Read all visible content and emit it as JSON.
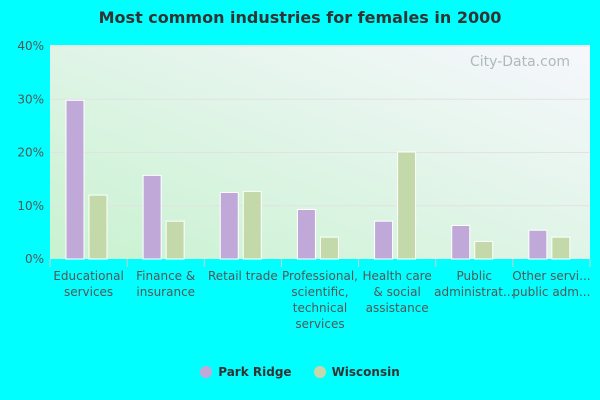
{
  "chart_data": {
    "type": "bar",
    "title": "Most common industries for females in 2000",
    "categories": [
      [
        "Educational",
        "services"
      ],
      [
        "Finance &",
        "insurance"
      ],
      [
        "Retail trade"
      ],
      [
        "Professional,",
        "scientific,",
        "technical",
        "services"
      ],
      [
        "Health care",
        "& social",
        "assistance"
      ],
      [
        "Public",
        "administrat..."
      ],
      [
        "Other servi...",
        "public adm..."
      ]
    ],
    "series": [
      {
        "name": "Park Ridge",
        "color": "#c0a9d9",
        "values": [
          29.8,
          15.7,
          12.5,
          9.3,
          7.1,
          6.3,
          5.4
        ]
      },
      {
        "name": "Wisconsin",
        "color": "#c4d9a9",
        "values": [
          12.0,
          7.1,
          12.7,
          4.1,
          20.1,
          3.3,
          4.1
        ]
      }
    ],
    "yticks": [
      "0%",
      "10%",
      "20%",
      "30%",
      "40%"
    ],
    "ylim": [
      0,
      40
    ],
    "grid": true,
    "legend": "bottom",
    "watermark": "City-Data.com"
  }
}
